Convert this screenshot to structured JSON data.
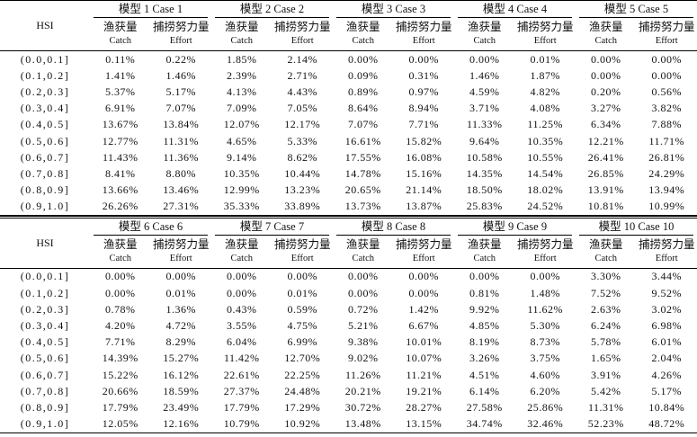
{
  "table": {
    "hsi_label": "HSI",
    "columns": [
      {
        "zh": "渔获量",
        "en": "Catch"
      },
      {
        "zh": "捕捞努力量",
        "en": "Effort"
      }
    ],
    "ranges": [
      "(0.0,0.1]",
      "(0.1,0.2]",
      "(0.2,0.3]",
      "(0.3,0.4]",
      "(0.4,0.5]",
      "(0.5,0.6]",
      "(0.6,0.7]",
      "(0.7,0.8]",
      "(0.8,0.9]",
      "(0.9,1.0]"
    ],
    "panels": [
      {
        "models": [
          "模型 1 Case 1",
          "模型 2 Case 2",
          "模型 3 Case 3",
          "模型 4 Case 4",
          "模型 5 Case 5"
        ],
        "rows": [
          [
            "0.11%",
            "0.22%",
            "1.85%",
            "2.14%",
            "0.00%",
            "0.00%",
            "0.00%",
            "0.01%",
            "0.00%",
            "0.00%"
          ],
          [
            "1.41%",
            "1.46%",
            "2.39%",
            "2.71%",
            "0.09%",
            "0.31%",
            "1.46%",
            "1.87%",
            "0.00%",
            "0.00%"
          ],
          [
            "5.37%",
            "5.17%",
            "4.13%",
            "4.43%",
            "0.89%",
            "0.97%",
            "4.59%",
            "4.82%",
            "0.20%",
            "0.56%"
          ],
          [
            "6.91%",
            "7.07%",
            "7.09%",
            "7.05%",
            "8.64%",
            "8.94%",
            "3.71%",
            "4.08%",
            "3.27%",
            "3.82%"
          ],
          [
            "13.67%",
            "13.84%",
            "12.07%",
            "12.17%",
            "7.07%",
            "7.71%",
            "11.33%",
            "11.25%",
            "6.34%",
            "7.88%"
          ],
          [
            "12.77%",
            "11.31%",
            "4.65%",
            "5.33%",
            "16.61%",
            "15.82%",
            "9.64%",
            "10.35%",
            "12.21%",
            "11.71%"
          ],
          [
            "11.43%",
            "11.36%",
            "9.14%",
            "8.62%",
            "17.55%",
            "16.08%",
            "10.58%",
            "10.55%",
            "26.41%",
            "26.81%"
          ],
          [
            "8.41%",
            "8.80%",
            "10.35%",
            "10.44%",
            "14.78%",
            "15.16%",
            "14.35%",
            "14.54%",
            "26.85%",
            "24.29%"
          ],
          [
            "13.66%",
            "13.46%",
            "12.99%",
            "13.23%",
            "20.65%",
            "21.14%",
            "18.50%",
            "18.02%",
            "13.91%",
            "13.94%"
          ],
          [
            "26.26%",
            "27.31%",
            "35.33%",
            "33.89%",
            "13.73%",
            "13.87%",
            "25.83%",
            "24.52%",
            "10.81%",
            "10.99%"
          ]
        ]
      },
      {
        "models": [
          "模型 6 Case 6",
          "模型 7 Case 7",
          "模型 8 Case 8",
          "模型 9 Case 9",
          "模型 10 Case 10"
        ],
        "rows": [
          [
            "0.00%",
            "0.00%",
            "0.00%",
            "0.00%",
            "0.00%",
            "0.00%",
            "0.00%",
            "0.00%",
            "3.30%",
            "3.44%"
          ],
          [
            "0.00%",
            "0.01%",
            "0.00%",
            "0.01%",
            "0.00%",
            "0.00%",
            "0.81%",
            "1.48%",
            "7.52%",
            "9.52%"
          ],
          [
            "0.78%",
            "1.36%",
            "0.43%",
            "0.59%",
            "0.72%",
            "1.42%",
            "9.92%",
            "11.62%",
            "2.63%",
            "3.02%"
          ],
          [
            "4.20%",
            "4.72%",
            "3.55%",
            "4.75%",
            "5.21%",
            "6.67%",
            "4.85%",
            "5.30%",
            "6.24%",
            "6.98%"
          ],
          [
            "7.71%",
            "8.29%",
            "6.04%",
            "6.99%",
            "9.38%",
            "10.01%",
            "8.19%",
            "8.73%",
            "5.78%",
            "6.01%"
          ],
          [
            "14.39%",
            "15.27%",
            "11.42%",
            "12.70%",
            "9.02%",
            "10.07%",
            "3.26%",
            "3.75%",
            "1.65%",
            "2.04%"
          ],
          [
            "15.22%",
            "16.12%",
            "22.61%",
            "22.25%",
            "11.26%",
            "11.21%",
            "4.51%",
            "4.60%",
            "3.91%",
            "4.26%"
          ],
          [
            "20.66%",
            "18.59%",
            "27.37%",
            "24.48%",
            "20.21%",
            "19.21%",
            "6.14%",
            "6.20%",
            "5.42%",
            "5.17%"
          ],
          [
            "17.79%",
            "23.49%",
            "17.79%",
            "17.29%",
            "30.72%",
            "28.27%",
            "27.58%",
            "25.86%",
            "11.31%",
            "10.84%"
          ],
          [
            "12.05%",
            "12.16%",
            "10.79%",
            "10.92%",
            "13.48%",
            "13.15%",
            "34.74%",
            "32.46%",
            "52.23%",
            "48.72%"
          ]
        ]
      }
    ]
  }
}
